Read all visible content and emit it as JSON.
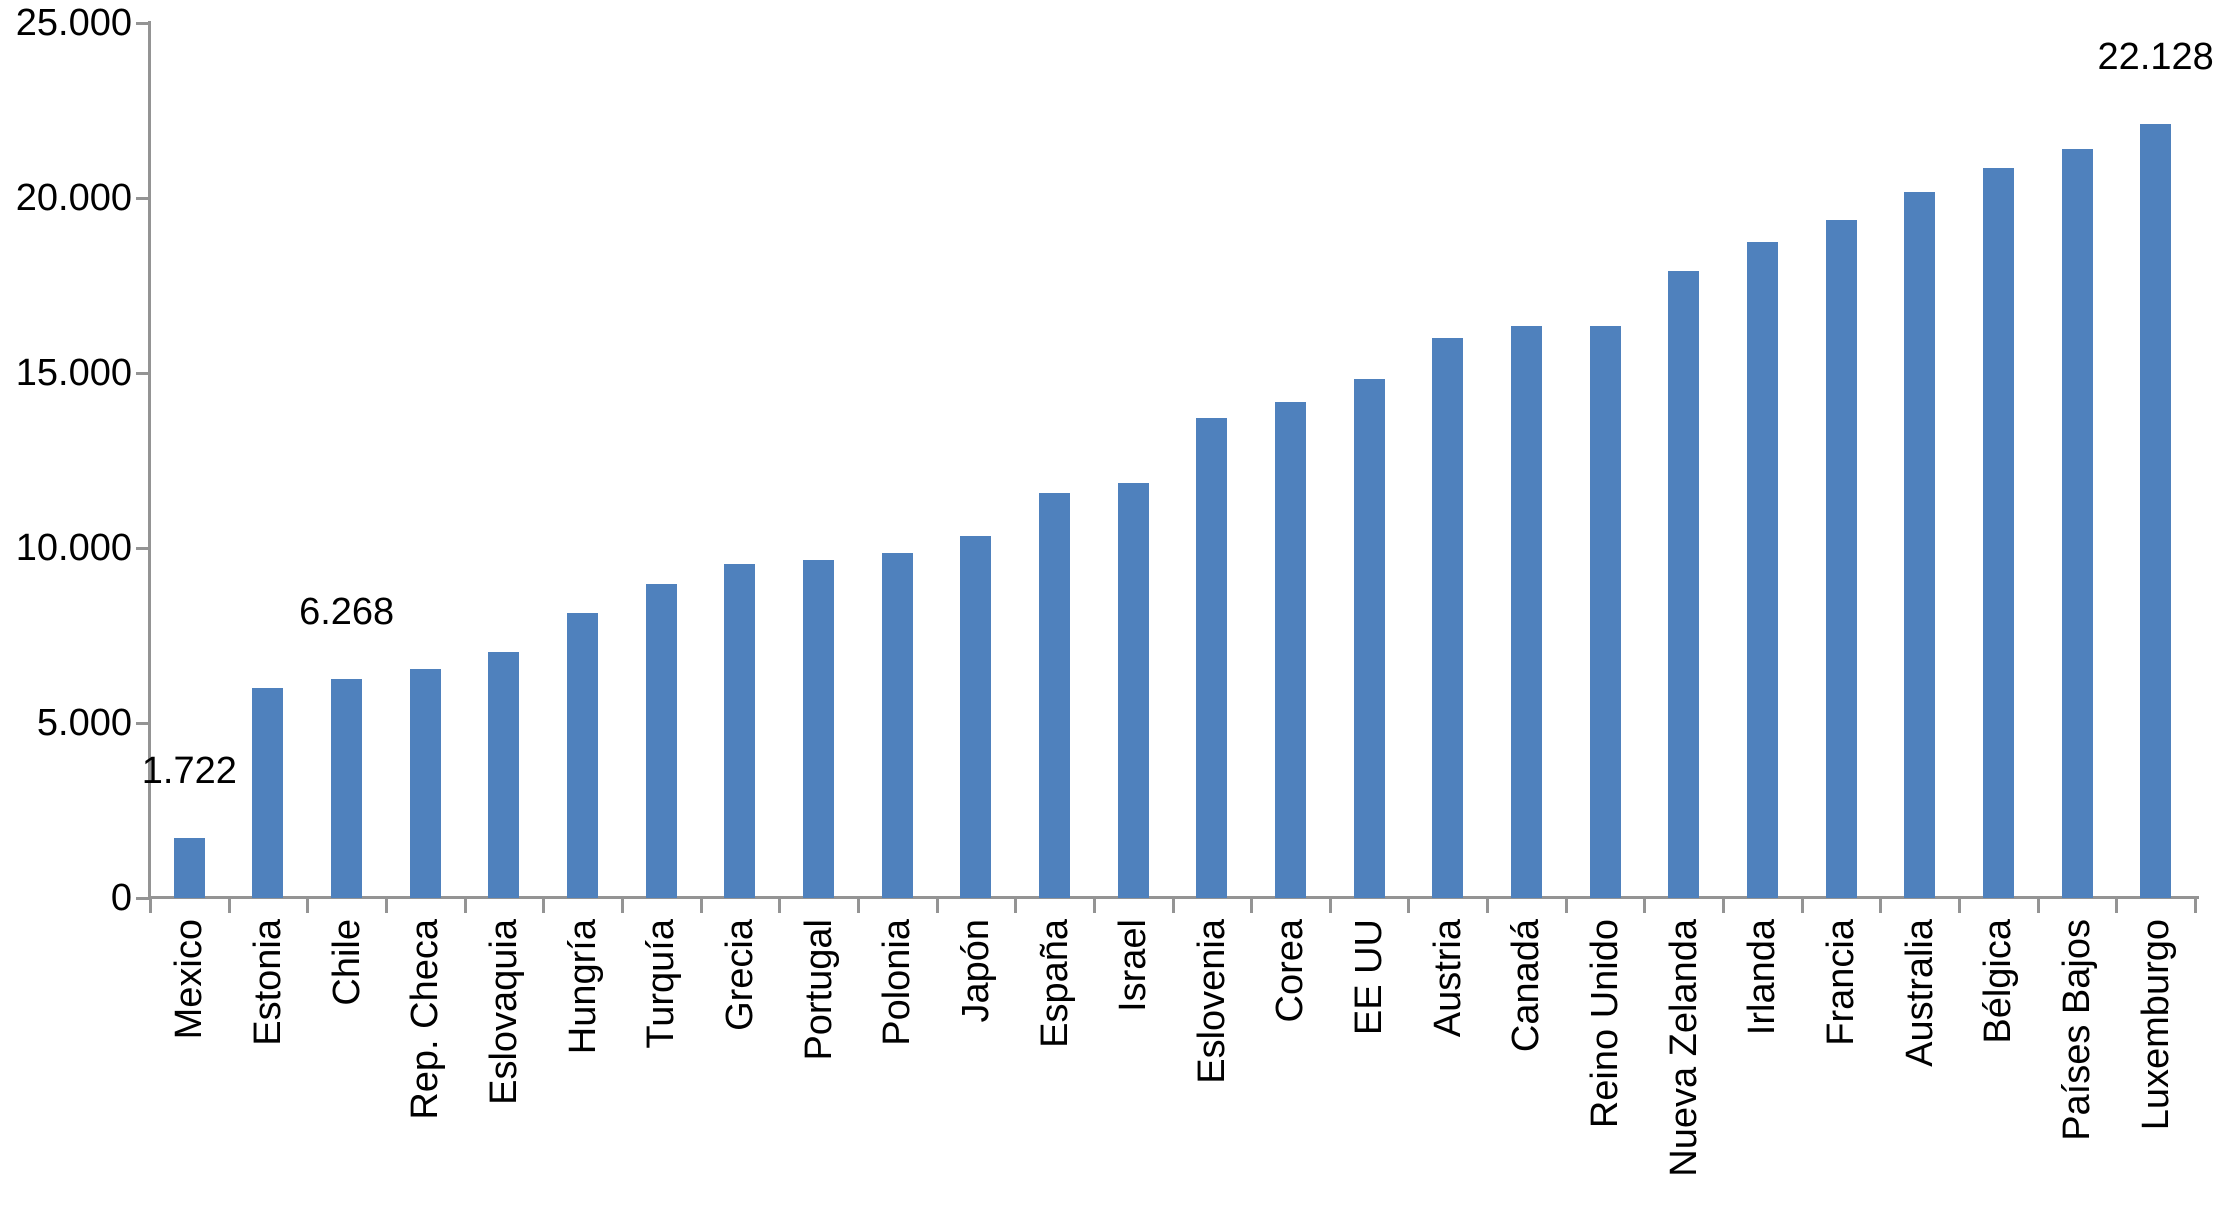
{
  "chart_data": {
    "type": "bar",
    "title": "",
    "xlabel": "",
    "ylabel": "",
    "categories": [
      "Mexico",
      "Estonia",
      "Chile",
      "Rep. Checa",
      "Eslovaquia",
      "Hungría",
      "Turquía",
      "Grecia",
      "Portugal",
      "Polonia",
      "Japón",
      "España",
      "Israel",
      "Eslovenia",
      "Corea",
      "EE UU",
      "Austria",
      "Canadá",
      "Reino Unido",
      "Nueva Zelanda",
      "Irlanda",
      "Francia",
      "Australia",
      "Bélgica",
      "Países Bajos",
      "Luxemburgo"
    ],
    "values": [
      1722,
      6000,
      6268,
      6530,
      7030,
      8140,
      8970,
      9540,
      9660,
      9860,
      10340,
      11570,
      11860,
      13710,
      14170,
      14830,
      16010,
      16340,
      16330,
      17910,
      18740,
      19370,
      20170,
      20860,
      21400,
      22128
    ],
    "data_labels": [
      "1.722",
      "",
      "6.268",
      "",
      "",
      "",
      "",
      "",
      "",
      "",
      "",
      "",
      "",
      "",
      "",
      "",
      "",
      "",
      "",
      "",
      "",
      "",
      "",
      "",
      "",
      "22.128"
    ],
    "ylim": [
      0,
      25000
    ],
    "y_ticks": [
      0,
      5000,
      10000,
      15000,
      20000,
      25000
    ],
    "y_tick_labels": [
      "0",
      "5.000",
      "10.000",
      "15.000",
      "20.000",
      "25.000"
    ],
    "grid": false,
    "legend": "none",
    "x_label_rotation_deg": -90,
    "colors": {
      "bar": "#4f81bd",
      "axis": "#949494",
      "text": "#000000",
      "background": "#ffffff"
    }
  }
}
